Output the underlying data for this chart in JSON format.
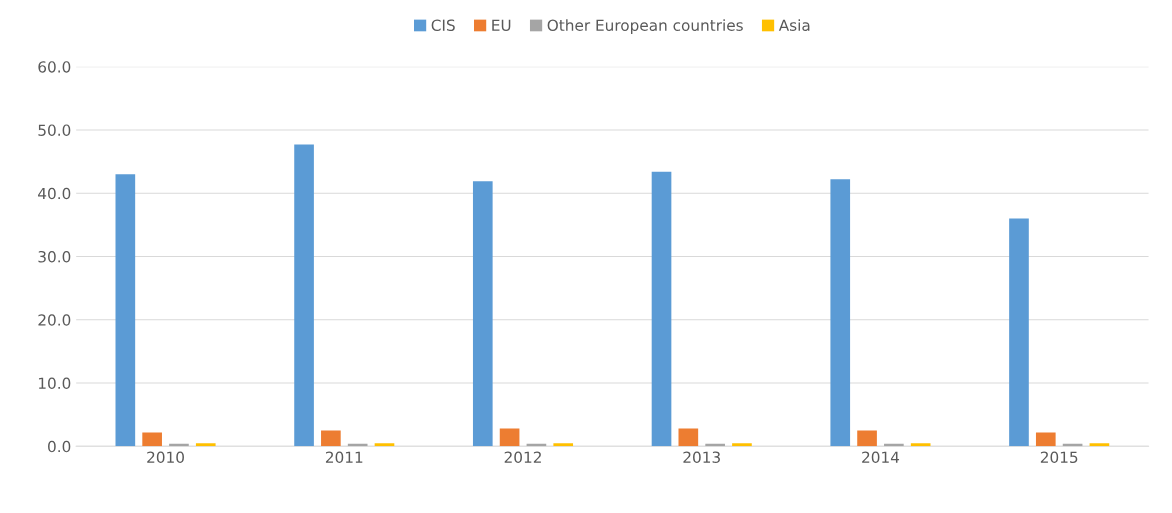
{
  "chart_data": {
    "type": "bar",
    "categories": [
      "2010",
      "2011",
      "2012",
      "2013",
      "2014",
      "2015"
    ],
    "series": [
      {
        "name": "CIS",
        "color": "#5b9bd5",
        "values": [
          43.0,
          47.7,
          41.9,
          43.4,
          42.2,
          36.0
        ]
      },
      {
        "name": "EU",
        "color": "#ed7d31",
        "values": [
          2.2,
          2.5,
          2.8,
          2.8,
          2.5,
          2.2
        ]
      },
      {
        "name": "Other European countries",
        "color": "#a5a5a5",
        "values": [
          0.4,
          0.4,
          0.4,
          0.4,
          0.4,
          0.4
        ]
      },
      {
        "name": "Asia",
        "color": "#ffc000",
        "values": [
          0.5,
          0.5,
          0.5,
          0.5,
          0.5,
          0.5
        ]
      }
    ],
    "ylim": [
      0,
      60
    ],
    "yticks": [
      {
        "value": 0,
        "label": "0.0"
      },
      {
        "value": 10,
        "label": "10.0"
      },
      {
        "value": 20,
        "label": "20.0"
      },
      {
        "value": 30,
        "label": "30.0"
      },
      {
        "value": 40,
        "label": "40.0"
      },
      {
        "value": 50,
        "label": "50.0"
      },
      {
        "value": 60,
        "label": "60.0"
      }
    ],
    "grid": "y",
    "legend": "top"
  }
}
